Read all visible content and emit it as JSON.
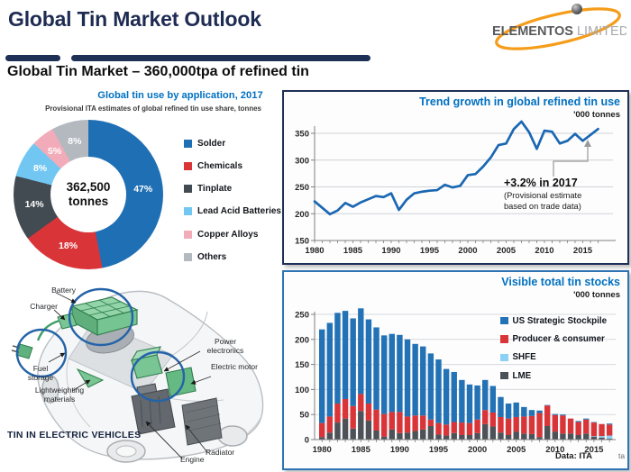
{
  "header": {
    "title": "Global Tin Market Outlook",
    "subtitle": "Global Tin Market – 360,000tpa of refined tin",
    "logo": {
      "word1": "ELEMENTOS",
      "word2": "LIMITED",
      "accent_color": "#F59C1A"
    }
  },
  "chart_data": [
    {
      "id": "tin-use-by-application",
      "type": "pie",
      "title": "Global tin use by application, 2017",
      "subtitle": "Provisional ITA estimates of global refined tin use share, tonnes",
      "center_label": "362,500",
      "center_sublabel": "tonnes",
      "legend_position": "right",
      "slices": [
        {
          "label": "Solder",
          "value": 47,
          "color": "#1F6FB5"
        },
        {
          "label": "Chemicals",
          "value": 18,
          "color": "#D93438"
        },
        {
          "label": "Tinplate",
          "value": 14,
          "color": "#424A52"
        },
        {
          "label": "Lead Acid Batteries",
          "value": 8,
          "color": "#72C7F2"
        },
        {
          "label": "Copper Alloys",
          "value": 5,
          "color": "#F2ACB9"
        },
        {
          "label": "Others",
          "value": 8,
          "color": "#B3B9BF"
        }
      ]
    },
    {
      "id": "trend-growth-refined-tin-use",
      "type": "line",
      "title": "Trend growth in global refined tin use",
      "unit": "'000 tonnes",
      "line_color": "#1A67B2",
      "grid": true,
      "ylim": [
        150,
        380
      ],
      "yticks": [
        150,
        200,
        250,
        300,
        350
      ],
      "xticks": [
        1980,
        1985,
        1990,
        1995,
        2000,
        2005,
        2010,
        2015
      ],
      "x": [
        1980,
        1981,
        1982,
        1983,
        1984,
        1985,
        1986,
        1987,
        1988,
        1989,
        1990,
        1991,
        1992,
        1993,
        1994,
        1995,
        1996,
        1997,
        1998,
        1999,
        2000,
        2001,
        2002,
        2003,
        2004,
        2005,
        2006,
        2007,
        2008,
        2009,
        2010,
        2011,
        2012,
        2013,
        2014,
        2015,
        2016,
        2017
      ],
      "values": [
        223,
        211,
        199,
        206,
        220,
        213,
        221,
        227,
        233,
        231,
        238,
        207,
        226,
        238,
        241,
        243,
        244,
        254,
        249,
        252,
        272,
        274,
        288,
        305,
        328,
        331,
        358,
        372,
        352,
        321,
        355,
        353,
        331,
        336,
        349,
        336,
        347,
        358
      ],
      "annotation": {
        "headline": "+3.2% in 2017",
        "note": [
          "(Provisional estimate",
          "based on trade data)"
        ]
      }
    },
    {
      "id": "visible-total-tin-stocks",
      "type": "bar",
      "stacked": true,
      "title": "Visible total tin stocks",
      "unit": "'000 tonnes",
      "source": "Data: ITA",
      "ylim": [
        0,
        250
      ],
      "yticks": [
        0,
        50,
        100,
        150,
        200,
        250
      ],
      "xticks": [
        1980,
        1985,
        1990,
        1995,
        2000,
        2005,
        2010,
        2015
      ],
      "x": [
        1980,
        1981,
        1982,
        1983,
        1984,
        1985,
        1986,
        1987,
        1988,
        1989,
        1990,
        1991,
        1992,
        1993,
        1994,
        1995,
        1996,
        1997,
        1998,
        1999,
        2000,
        2001,
        2002,
        2003,
        2004,
        2005,
        2006,
        2007,
        2008,
        2009,
        2010,
        2011,
        2012,
        2013,
        2014,
        2015,
        2016,
        2017
      ],
      "series": [
        {
          "name": "LME",
          "color": "#4D5258",
          "values": [
            5,
            14,
            34,
            42,
            22,
            57,
            38,
            18,
            6,
            20,
            13,
            14,
            17,
            20,
            27,
            10,
            8,
            13,
            9,
            9,
            13,
            31,
            26,
            14,
            9,
            16,
            12,
            11,
            5,
            27,
            16,
            12,
            12,
            9,
            12,
            6,
            4,
            2
          ]
        },
        {
          "name": "SHFE",
          "color": "#8BD0F5",
          "values": [
            0,
            0,
            0,
            0,
            0,
            0,
            0,
            0,
            0,
            0,
            0,
            0,
            0,
            0,
            0,
            0,
            0,
            0,
            0,
            0,
            0,
            0,
            0,
            0,
            0,
            0,
            0,
            0,
            0,
            0,
            0,
            0,
            0,
            0,
            0,
            1,
            3,
            6
          ]
        },
        {
          "name": "Producer & consumer",
          "color": "#D93438",
          "values": [
            28,
            32,
            38,
            39,
            45,
            34,
            34,
            42,
            45,
            35,
            42,
            32,
            31,
            28,
            13,
            23,
            22,
            22,
            25,
            24,
            27,
            28,
            28,
            31,
            33,
            29,
            34,
            36,
            48,
            41,
            33,
            36,
            30,
            26,
            28,
            27,
            24,
            22
          ]
        },
        {
          "name": "US Strategic Stockpile",
          "color": "#2272B5",
          "values": [
            187,
            187,
            181,
            176,
            175,
            171,
            168,
            164,
            157,
            156,
            154,
            154,
            143,
            138,
            132,
            127,
            111,
            100,
            85,
            77,
            68,
            60,
            53,
            40,
            30,
            29,
            19,
            12,
            5,
            1,
            2,
            2,
            0,
            2,
            2,
            1,
            0,
            2
          ]
        }
      ],
      "legend_order": [
        "US Strategic Stockpile",
        "Producer & consumer",
        "SHFE",
        "LME"
      ]
    }
  ],
  "ev_diagram": {
    "caption": "TIN IN ELECTRIC VEHICLES",
    "labels": [
      "Battery",
      "Charger",
      "Fuel storage",
      "Lightweighting materials",
      "Power electronics",
      "Electric motor",
      "Radiator",
      "Engine"
    ]
  },
  "footer": {
    "clipped_text": "ta"
  }
}
